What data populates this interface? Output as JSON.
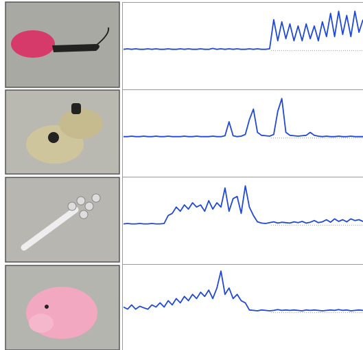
{
  "chart_data": [
    {
      "type": "line",
      "color": "#1f48d6",
      "ylim": [
        -0.9,
        1.1
      ],
      "values": [
        0,
        0.01,
        0,
        0.01,
        0,
        0,
        0.01,
        0,
        0.01,
        0,
        0,
        0.01,
        0,
        0,
        0.01,
        0,
        0.01,
        0,
        0,
        0.01,
        0,
        0,
        0.02,
        0,
        0.01,
        0,
        0.01,
        0,
        0.01,
        0,
        0,
        0.01,
        0,
        0.01,
        0,
        0,
        0.01,
        0.7,
        0.2,
        0.65,
        0.25,
        0.6,
        0.2,
        0.55,
        0.2,
        0.6,
        0.25,
        0.55,
        0.2,
        0.65,
        0.3,
        0.85,
        0.3,
        0.9,
        0.35,
        0.8,
        0.3,
        0.9,
        0.4,
        0.7
      ]
    },
    {
      "type": "line",
      "color": "#1f48d6",
      "ylim": [
        -0.9,
        1.1
      ],
      "values": [
        0,
        0,
        0.01,
        0,
        0,
        0.01,
        0,
        0,
        0.01,
        0,
        0,
        0.01,
        0,
        0,
        0,
        0.01,
        0,
        0,
        0.01,
        0,
        0,
        0,
        0.01,
        0,
        0,
        0.02,
        0.35,
        0.02,
        0,
        0.01,
        0.05,
        0.4,
        0.65,
        0.1,
        0.03,
        0.02,
        0.01,
        0.05,
        0.6,
        0.9,
        0.1,
        0.03,
        0.02,
        0.01,
        0.02,
        0.03,
        0.1,
        0.03,
        0.01,
        0,
        0.01,
        0,
        0,
        0.01,
        0,
        0,
        0.01,
        0,
        0,
        0
      ]
    },
    {
      "type": "line",
      "color": "#1f48d6",
      "ylim": [
        -0.9,
        1.1
      ],
      "values": [
        0,
        0.01,
        0,
        0,
        0.01,
        0,
        0,
        0.01,
        0,
        0,
        0.01,
        0.2,
        0.25,
        0.4,
        0.3,
        0.45,
        0.35,
        0.5,
        0.4,
        0.45,
        0.3,
        0.55,
        0.35,
        0.5,
        0.4,
        0.85,
        0.3,
        0.6,
        0.65,
        0.25,
        0.9,
        0.4,
        0.2,
        0.05,
        0.02,
        0.01,
        0.03,
        0.05,
        0.02,
        0.04,
        0.03,
        0.02,
        0.05,
        0.03,
        0.06,
        0.02,
        0.04,
        0.08,
        0.03,
        0.05,
        0.1,
        0.04,
        0.12,
        0.06,
        0.1,
        0.05,
        0.12,
        0.08,
        0.1,
        0.06
      ]
    },
    {
      "type": "line",
      "color": "#1f48d6",
      "ylim": [
        -0.9,
        1.1
      ],
      "values": [
        0.1,
        0.05,
        0.15,
        0.05,
        0.12,
        0.08,
        0.05,
        0.15,
        0.1,
        0.2,
        0.1,
        0.25,
        0.15,
        0.3,
        0.2,
        0.35,
        0.25,
        0.4,
        0.3,
        0.45,
        0.35,
        0.5,
        0.3,
        0.55,
        0.95,
        0.4,
        0.55,
        0.3,
        0.4,
        0.25,
        0.2,
        0.03,
        0.02,
        0.01,
        0.03,
        0.02,
        0.01,
        0.02,
        0.04,
        0.02,
        0.03,
        0.02,
        0.03,
        0.02,
        0.01,
        0.03,
        0.02,
        0.03,
        0.02,
        0.01,
        0.02,
        0.03,
        0.02,
        0.04,
        0.02,
        0.03,
        0.01,
        0.02,
        0.03,
        0.02
      ]
    }
  ]
}
